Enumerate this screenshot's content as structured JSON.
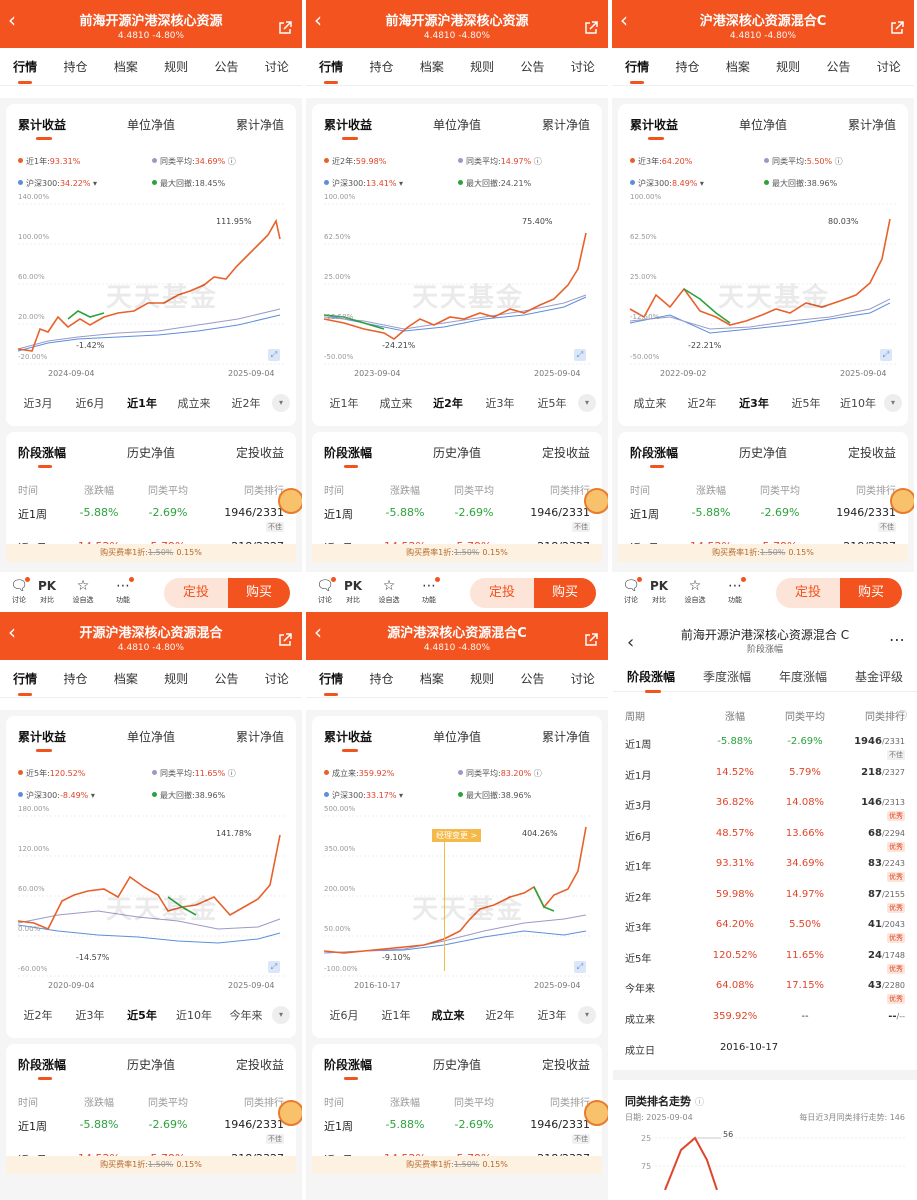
{
  "common": {
    "nav_tabs": [
      "行情",
      "持仓",
      "档案",
      "规则",
      "公告",
      "讨论"
    ],
    "chart_tabs": [
      "累计收益",
      "单位净值",
      "累计净值"
    ],
    "stage_tabs": [
      "阶段涨幅",
      "历史净值",
      "定投收益"
    ],
    "stage_header": [
      "时间",
      "涨跌幅",
      "同类平均",
      "同类排行"
    ],
    "row1": {
      "period": "近1周",
      "chg": "-5.88%",
      "avg": "-2.69%",
      "rank": "1946/2331",
      "tag": "不佳"
    },
    "row2": {
      "period": "近1月",
      "chg": "14.52%",
      "avg": "5.79%",
      "rank": "218/2327"
    },
    "fee": {
      "label": "购买费率1折:",
      "old": "1.50%",
      "new": "0.15%"
    },
    "bottom": {
      "discuss": "讨论",
      "pk_icon": "PK",
      "pk": "对比",
      "fav": "设自选",
      "func": "功能",
      "dingtou": "定投",
      "buy": "购买"
    },
    "watermark": "天天基金",
    "colors": {
      "brand": "#f2531f",
      "fund": "#e8602a",
      "peer": "#9a9ac8",
      "hs300": "#5b8fdc",
      "drawdown": "#2ba23c"
    }
  },
  "panels": [
    {
      "title": "前海开源沪港深核心资源",
      "sub": "4.4810 -4.80%",
      "legend": {
        "period": "近1年:",
        "ret": "93.31%",
        "peer_label": "同类平均:",
        "peer": "34.69%",
        "hs_label": "沪深300:",
        "hs": "34.22%",
        "dd_label": "最大回撤:",
        "dd": "18.45%"
      },
      "yticks": [
        "140.00%",
        "100.00%",
        "60.00%",
        "20.00%",
        "-20.00%"
      ],
      "x_start": "2024-09-04",
      "x_end": "2025-09-04",
      "peak": "111.95%",
      "low": "-1.42%",
      "ranges": [
        "近3月",
        "近6月",
        "近1年",
        "成立来",
        "近2年"
      ],
      "range_on": 2
    },
    {
      "title": "前海开源沪港深核心资源",
      "sub": "4.4810 -4.80%",
      "legend": {
        "period": "近2年:",
        "ret": "59.98%",
        "peer_label": "同类平均:",
        "peer": "14.97%",
        "hs_label": "沪深300:",
        "hs": "13.41%",
        "dd_label": "最大回撤:",
        "dd": "24.21%"
      },
      "yticks": [
        "100.00%",
        "62.50%",
        "25.00%",
        "-12.50%",
        "-50.00%"
      ],
      "x_start": "2023-09-04",
      "x_end": "2025-09-04",
      "peak": "75.40%",
      "low": "-24.21%",
      "ranges": [
        "近1年",
        "成立来",
        "近2年",
        "近3年",
        "近5年"
      ],
      "range_on": 2
    },
    {
      "title": "沪港深核心资源混合C",
      "sub": "4.4810 -4.80%",
      "legend": {
        "period": "近3年:",
        "ret": "64.20%",
        "peer_label": "同类平均:",
        "peer": "5.50%",
        "hs_label": "沪深300:",
        "hs": "8.49%",
        "dd_label": "最大回撤:",
        "dd": "38.96%"
      },
      "yticks": [
        "100.00%",
        "62.50%",
        "25.00%",
        "-12.50%",
        "-50.00%"
      ],
      "x_start": "2022-09-02",
      "x_end": "2025-09-04",
      "peak": "80.03%",
      "low": "-22.21%",
      "ranges": [
        "成立来",
        "近2年",
        "近3年",
        "近5年",
        "近10年"
      ],
      "range_on": 2
    },
    {
      "title": "开源沪港深核心资源混合",
      "sub": "4.4810 -4.80%",
      "legend": {
        "period": "近5年:",
        "ret": "120.52%",
        "peer_label": "同类平均:",
        "peer": "11.65%",
        "hs_label": "沪深300:",
        "hs": "-8.49%",
        "dd_label": "最大回撤:",
        "dd": "38.96%"
      },
      "yticks": [
        "180.00%",
        "120.00%",
        "60.00%",
        "0.00%",
        "-60.00%"
      ],
      "x_start": "2020-09-04",
      "x_end": "2025-09-04",
      "peak": "141.78%",
      "low": "-14.57%",
      "ranges": [
        "近2年",
        "近3年",
        "近5年",
        "近10年",
        "今年来"
      ],
      "range_on": 2
    },
    {
      "title": "源沪港深核心资源混合C",
      "sub": "4.4810 -4.80%",
      "legend": {
        "period": "成立来:",
        "ret": "359.92%",
        "peer_label": "同类平均:",
        "peer": "83.20%",
        "hs_label": "沪深300:",
        "hs": "33.17%",
        "dd_label": "最大回撤:",
        "dd": "38.96%"
      },
      "yticks": [
        "500.00%",
        "350.00%",
        "200.00%",
        "50.00%",
        "-100.00%"
      ],
      "x_start": "2016-10-17",
      "x_end": "2025-09-04",
      "peak": "404.26%",
      "low": "-9.10%",
      "manager": "经理变更 >",
      "ranges": [
        "近6月",
        "近1年",
        "成立来",
        "近2年",
        "近3年"
      ],
      "range_on": 2
    }
  ],
  "right": {
    "title": "前海开源沪港深核心资源混合 C",
    "subtitle": "阶段涨幅",
    "tabs": [
      "阶段涨幅",
      "季度涨幅",
      "年度涨幅",
      "基金评级"
    ],
    "header": [
      "周期",
      "涨幅",
      "同类平均",
      "同类排行"
    ],
    "rows": [
      {
        "p": "近1周",
        "c": "-5.88%",
        "a": "-2.69%",
        "r": "1946",
        "t": "/2331",
        "tag": "不佳"
      },
      {
        "p": "近1月",
        "c": "14.52%",
        "a": "5.79%",
        "r": "218",
        "t": "/2327",
        "tag": ""
      },
      {
        "p": "近3月",
        "c": "36.82%",
        "a": "14.08%",
        "r": "146",
        "t": "/2313",
        "tag": "优秀"
      },
      {
        "p": "近6月",
        "c": "48.57%",
        "a": "13.66%",
        "r": "68",
        "t": "/2294",
        "tag": "优秀"
      },
      {
        "p": "近1年",
        "c": "93.31%",
        "a": "34.69%",
        "r": "83",
        "t": "/2243",
        "tag": "优秀"
      },
      {
        "p": "近2年",
        "c": "59.98%",
        "a": "14.97%",
        "r": "87",
        "t": "/2155",
        "tag": "优秀"
      },
      {
        "p": "近3年",
        "c": "64.20%",
        "a": "5.50%",
        "r": "41",
        "t": "/2043",
        "tag": "优秀"
      },
      {
        "p": "近5年",
        "c": "120.52%",
        "a": "11.65%",
        "r": "24",
        "t": "/1748",
        "tag": "优秀"
      },
      {
        "p": "今年来",
        "c": "64.08%",
        "a": "17.15%",
        "r": "43",
        "t": "/2280",
        "tag": "优秀"
      },
      {
        "p": "成立来",
        "c": "359.92%",
        "a": "--",
        "r": "--",
        "t": "/--",
        "tag": ""
      }
    ],
    "found_label": "成立日",
    "found_date": "2016-10-17",
    "trend_title": "同类排名走势",
    "trend_date": "日期: 2025-09-04",
    "trend_note": "每日近3月同类排行走势: 146",
    "trend_y": [
      "25",
      "75"
    ],
    "trend_point": "56"
  }
}
